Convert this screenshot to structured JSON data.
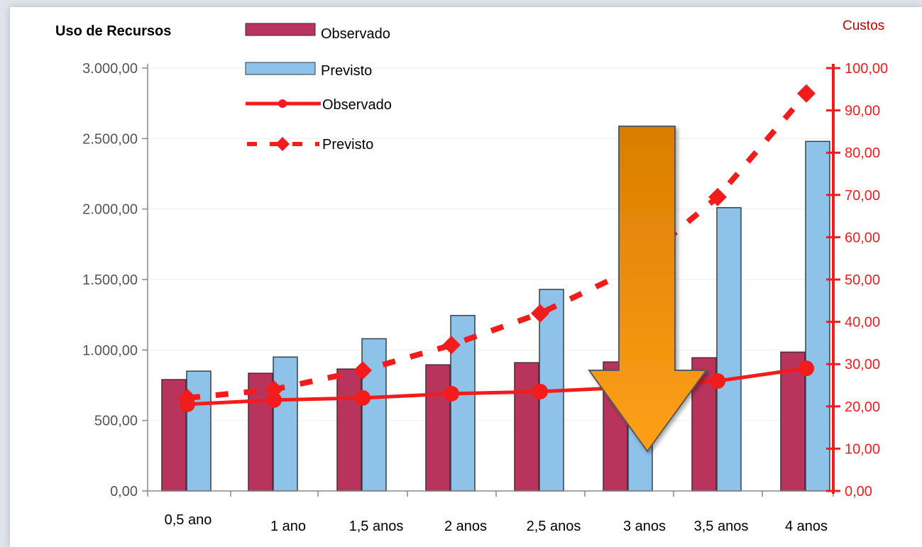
{
  "chart_data": {
    "type": "bar",
    "title": "",
    "left_axis": {
      "label": "Uso de Recursos",
      "ylim": [
        0,
        3000
      ],
      "ticks": [
        "0,00",
        "500,00",
        "1.000,00",
        "1.500,00",
        "2.000,00",
        "2.500,00",
        "3.000,00"
      ]
    },
    "right_axis": {
      "label": "Custos",
      "ylim": [
        0,
        100
      ],
      "ticks": [
        "0,00",
        "10,00",
        "20,00",
        "30,00",
        "40,00",
        "50,00",
        "60,00",
        "70,00",
        "80,00",
        "90,00",
        "100,00"
      ]
    },
    "categories": [
      "0,5 ano",
      "1 ano",
      "1,5 anos",
      "2 anos",
      "2,5 anos",
      "3 anos",
      "3,5 anos",
      "4 anos"
    ],
    "bars": [
      {
        "name": "Observado",
        "axis": "left",
        "color": "#b8345c",
        "values": [
          790,
          835,
          865,
          895,
          910,
          915,
          945,
          985
        ]
      },
      {
        "name": "Previsto",
        "axis": "left",
        "color": "#8fc2e8",
        "values": [
          850,
          950,
          1080,
          1245,
          1430,
          1660,
          2010,
          2480
        ]
      }
    ],
    "lines": [
      {
        "name": "Observado",
        "axis": "right",
        "color": "#f21c1c",
        "style": "solid",
        "values": [
          20.5,
          21.5,
          22,
          23,
          23.5,
          24.5,
          26,
          29
        ]
      },
      {
        "name": "Previsto",
        "axis": "right",
        "color": "#f21c1c",
        "style": "dashed",
        "values": [
          22,
          24,
          28.5,
          34.5,
          42,
          52,
          69.5,
          94
        ]
      }
    ],
    "legend_position": "top-left",
    "annotation": {
      "shape": "down-arrow",
      "color": "#f39200"
    }
  }
}
